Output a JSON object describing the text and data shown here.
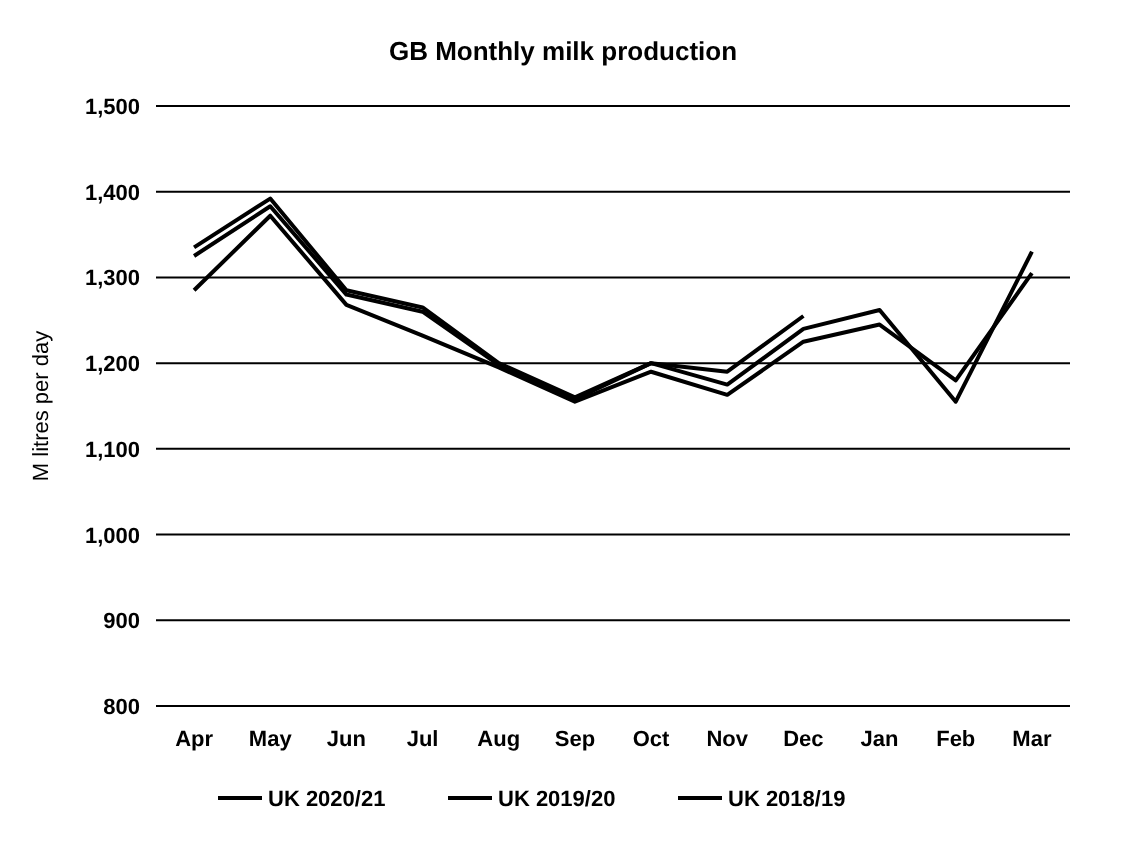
{
  "chart_data": {
    "type": "line",
    "title": "GB Monthly milk production",
    "ylabel": "M litres per day",
    "categories": [
      "Apr",
      "May",
      "Jun",
      "Jul",
      "Aug",
      "Sep",
      "Oct",
      "Nov",
      "Dec",
      "Jan",
      "Feb",
      "Mar"
    ],
    "series": [
      {
        "name": "UK 2020/21",
        "color": "#000000",
        "values": [
          1335,
          1392,
          1285,
          1265,
          1200,
          1160,
          1200,
          1190,
          1255,
          null,
          null,
          null
        ]
      },
      {
        "name": "UK 2019/20",
        "color": "#000000",
        "values": [
          1325,
          1383,
          1280,
          1260,
          1198,
          1158,
          1200,
          1175,
          1240,
          1262,
          1155,
          1330
        ]
      },
      {
        "name": "UK 2018/19",
        "color": "#000000",
        "values": [
          1285,
          1372,
          1268,
          1232,
          1195,
          1155,
          1190,
          1163,
          1225,
          1245,
          1180,
          1305
        ]
      }
    ],
    "ylim": [
      800,
      1500
    ],
    "yticks": [
      {
        "value": 800,
        "label": "800"
      },
      {
        "value": 900,
        "label": "900"
      },
      {
        "value": 1000,
        "label": "1,000"
      },
      {
        "value": 1100,
        "label": "1,100"
      },
      {
        "value": 1200,
        "label": "1,200"
      },
      {
        "value": 1300,
        "label": "1,300"
      },
      {
        "value": 1400,
        "label": "1,400"
      },
      {
        "value": 1500,
        "label": "1,500"
      }
    ],
    "grid": "y",
    "legend": "bottom",
    "marker": "none",
    "line_style": "solid"
  }
}
